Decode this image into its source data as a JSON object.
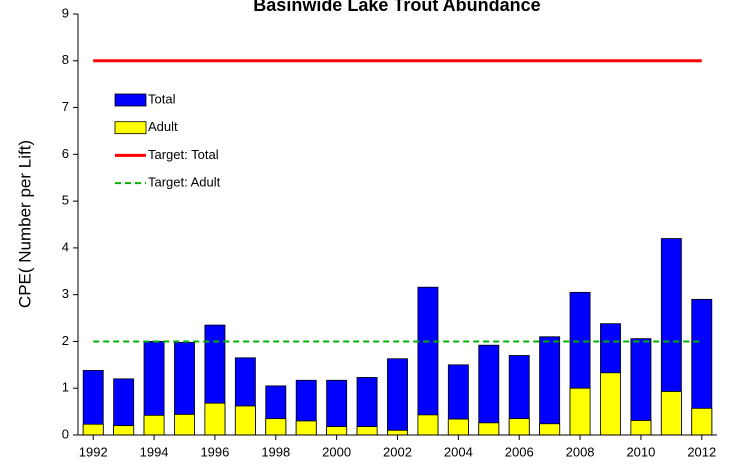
{
  "chart_data": {
    "type": "bar",
    "title": "Basinwide Lake Trout Abundance",
    "y_label": "CPE( Number per Lift)",
    "x": [
      1992,
      1993,
      1994,
      1995,
      1996,
      1997,
      1998,
      1999,
      2000,
      2001,
      2002,
      2003,
      2004,
      2005,
      2006,
      2007,
      2008,
      2009,
      2010,
      2011,
      2012
    ],
    "series": [
      {
        "name": "Total",
        "color": "#0000ff",
        "values": [
          1.38,
          1.2,
          2.0,
          1.98,
          2.35,
          1.65,
          1.05,
          1.17,
          1.17,
          1.23,
          1.63,
          3.16,
          1.5,
          1.92,
          1.7,
          2.1,
          3.05,
          2.38,
          2.06,
          4.2,
          2.9
        ]
      },
      {
        "name": "Adult",
        "color": "#ffff00",
        "values": [
          0.23,
          0.2,
          0.42,
          0.44,
          0.68,
          0.62,
          0.35,
          0.3,
          0.18,
          0.18,
          0.1,
          0.43,
          0.34,
          0.26,
          0.35,
          0.24,
          1.0,
          1.33,
          0.31,
          0.93,
          0.57
        ]
      }
    ],
    "target_lines": [
      {
        "name": "Target: Total",
        "color": "#ff0000",
        "value": 8,
        "dashed": false
      },
      {
        "name": "Target: Adult",
        "color": "#00b000",
        "value": 2,
        "dashed": true
      }
    ],
    "xlim": [
      1991.5,
      2012.5
    ],
    "xticks": [
      1992,
      1994,
      1996,
      1998,
      2000,
      2002,
      2004,
      2006,
      2008,
      2010,
      2012
    ],
    "ylim": [
      0,
      9
    ],
    "yticks": [
      0,
      1,
      2,
      3,
      4,
      5,
      6,
      7,
      8,
      9
    ],
    "grid": false,
    "legend": "upper-left"
  }
}
